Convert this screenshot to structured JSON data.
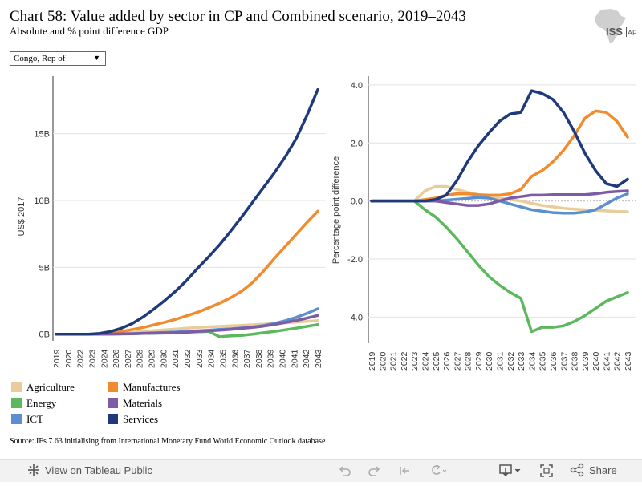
{
  "header": {
    "title": "Chart 58: Value added by sector in CP and Combined scenario, 2019–2043",
    "subtitle": "Absolute and % point difference GDP",
    "logo_text": "ISS",
    "logo_text2": "AFI"
  },
  "filter": {
    "selected": "Congo, Rep of"
  },
  "colors": {
    "Agriculture": "#e8cc99",
    "Manufactures": "#f28a2e",
    "Energy": "#5cb85c",
    "Materials": "#7e5ba6",
    "ICT": "#5b8fd0",
    "Services": "#1f3a7a"
  },
  "chart_data": [
    {
      "type": "line",
      "title": "",
      "ylabel": "US$ 2017",
      "xlabel": "",
      "ylim": [
        -0.5,
        19.3
      ],
      "y_ticks": [
        0,
        5,
        10,
        15
      ],
      "y_tick_labels": [
        "0B",
        "5B",
        "10B",
        "15B"
      ],
      "x": [
        2019,
        2020,
        2021,
        2022,
        2023,
        2024,
        2025,
        2026,
        2027,
        2028,
        2029,
        2030,
        2031,
        2032,
        2033,
        2034,
        2035,
        2036,
        2037,
        2038,
        2039,
        2040,
        2041,
        2042,
        2043
      ],
      "x_tick_labels": [
        "2019",
        "2020",
        "2022",
        "2023",
        "2024",
        "2026",
        "2027",
        "2028",
        "2029",
        "2030",
        "2031",
        "2032",
        "2033",
        "2034",
        "2035",
        "2036",
        "2037",
        "2038",
        "2039",
        "2040",
        "2041",
        "2042",
        "2043"
      ],
      "series": [
        {
          "name": "Agriculture",
          "values": [
            0,
            0,
            0,
            0,
            0.02,
            0.06,
            0.1,
            0.15,
            0.2,
            0.26,
            0.32,
            0.38,
            0.44,
            0.5,
            0.55,
            0.58,
            0.62,
            0.66,
            0.7,
            0.75,
            0.8,
            0.85,
            0.9,
            0.96,
            1.02
          ]
        },
        {
          "name": "Energy",
          "values": [
            0,
            0,
            0,
            0,
            0,
            0,
            0.01,
            0.03,
            0.05,
            0.07,
            0.09,
            0.11,
            0.14,
            0.17,
            0.2,
            -0.2,
            -0.12,
            -0.1,
            0.0,
            0.1,
            0.2,
            0.32,
            0.45,
            0.58,
            0.72
          ]
        },
        {
          "name": "ICT",
          "values": [
            0,
            0,
            0,
            0,
            0,
            0.01,
            0.02,
            0.04,
            0.07,
            0.1,
            0.13,
            0.16,
            0.2,
            0.25,
            0.3,
            0.35,
            0.4,
            0.46,
            0.54,
            0.64,
            0.8,
            1.0,
            1.25,
            1.55,
            1.9
          ]
        },
        {
          "name": "Manufactures",
          "values": [
            0,
            0,
            0,
            0,
            0.03,
            0.1,
            0.2,
            0.35,
            0.5,
            0.7,
            0.9,
            1.12,
            1.38,
            1.65,
            1.98,
            2.32,
            2.72,
            3.2,
            3.85,
            4.7,
            5.65,
            6.55,
            7.45,
            8.35,
            9.2
          ]
        },
        {
          "name": "Materials",
          "values": [
            0,
            0,
            0,
            0,
            0,
            0.01,
            0.02,
            0.03,
            0.05,
            0.07,
            0.09,
            0.12,
            0.15,
            0.2,
            0.25,
            0.3,
            0.36,
            0.43,
            0.51,
            0.6,
            0.72,
            0.87,
            1.02,
            1.2,
            1.4
          ]
        },
        {
          "name": "Services",
          "values": [
            0,
            0,
            0,
            0,
            0.06,
            0.2,
            0.45,
            0.8,
            1.3,
            1.9,
            2.55,
            3.25,
            4.05,
            4.95,
            5.8,
            6.7,
            7.7,
            8.75,
            9.85,
            10.95,
            12.05,
            13.25,
            14.6,
            16.35,
            18.3
          ]
        }
      ]
    },
    {
      "type": "line",
      "title": "",
      "ylabel": "Percentage point difference",
      "xlabel": "",
      "ylim": [
        -4.9,
        4.3
      ],
      "y_ticks": [
        4,
        2,
        0,
        -2,
        -4
      ],
      "y_tick_labels": [
        "4.0",
        "2.0",
        "0.0",
        "-2.0",
        "-4.0"
      ],
      "x": [
        2019,
        2020,
        2021,
        2022,
        2023,
        2024,
        2025,
        2026,
        2027,
        2028,
        2029,
        2030,
        2031,
        2032,
        2033,
        2034,
        2035,
        2036,
        2037,
        2038,
        2039,
        2040,
        2041,
        2042,
        2043
      ],
      "x_tick_labels": [
        "2019",
        "2020",
        "2021",
        "2022",
        "2023",
        "2024",
        "2025",
        "2026",
        "2027",
        "2028",
        "2029",
        "2030",
        "2031",
        "2032",
        "2033",
        "2034",
        "2035",
        "2036",
        "2037",
        "2038",
        "2039",
        "2040",
        "2041",
        "2042",
        "2043"
      ],
      "series": [
        {
          "name": "Agriculture",
          "values": [
            0,
            0,
            0,
            0,
            0,
            0.35,
            0.5,
            0.5,
            0.4,
            0.3,
            0.22,
            0.15,
            0.1,
            0.05,
            0,
            -0.08,
            -0.15,
            -0.2,
            -0.25,
            -0.28,
            -0.3,
            -0.32,
            -0.34,
            -0.36,
            -0.37
          ]
        },
        {
          "name": "Energy",
          "values": [
            0,
            0,
            0,
            0,
            0,
            -0.3,
            -0.55,
            -0.9,
            -1.3,
            -1.75,
            -2.2,
            -2.6,
            -2.9,
            -3.15,
            -3.35,
            -4.5,
            -4.35,
            -4.35,
            -4.3,
            -4.15,
            -3.95,
            -3.7,
            -3.45,
            -3.3,
            -3.15
          ]
        },
        {
          "name": "ICT",
          "values": [
            0,
            0,
            0,
            0,
            0,
            0,
            0,
            0.03,
            0.06,
            0.09,
            0.12,
            0.1,
            0,
            -0.1,
            -0.2,
            -0.3,
            -0.35,
            -0.4,
            -0.42,
            -0.42,
            -0.38,
            -0.3,
            -0.1,
            0.1,
            0.25
          ]
        },
        {
          "name": "Manufactures",
          "values": [
            0,
            0,
            0,
            0,
            0,
            0.05,
            0.1,
            0.2,
            0.25,
            0.25,
            0.22,
            0.2,
            0.2,
            0.25,
            0.4,
            0.85,
            1.05,
            1.35,
            1.75,
            2.25,
            2.85,
            3.1,
            3.05,
            2.75,
            2.2
          ]
        },
        {
          "name": "Materials",
          "values": [
            0,
            0,
            0,
            0,
            0,
            0,
            0,
            -0.05,
            -0.1,
            -0.15,
            -0.15,
            -0.1,
            0,
            0.1,
            0.15,
            0.2,
            0.2,
            0.22,
            0.22,
            0.22,
            0.22,
            0.25,
            0.3,
            0.33,
            0.35
          ]
        },
        {
          "name": "Services",
          "values": [
            0,
            0,
            0,
            0,
            0,
            0,
            0.05,
            0.2,
            0.7,
            1.35,
            1.9,
            2.35,
            2.75,
            3.0,
            3.05,
            3.8,
            3.7,
            3.5,
            3.05,
            2.4,
            1.65,
            1.05,
            0.6,
            0.5,
            0.75
          ]
        }
      ]
    }
  ],
  "legend": [
    "Agriculture",
    "Manufactures",
    "Energy",
    "Materials",
    "ICT",
    "Services"
  ],
  "source": "Source: IFs 7.63 initialising from International Monetary Fund World Economic Outlook database",
  "toolbar": {
    "view_label": "View on Tableau Public",
    "share_label": "Share"
  }
}
